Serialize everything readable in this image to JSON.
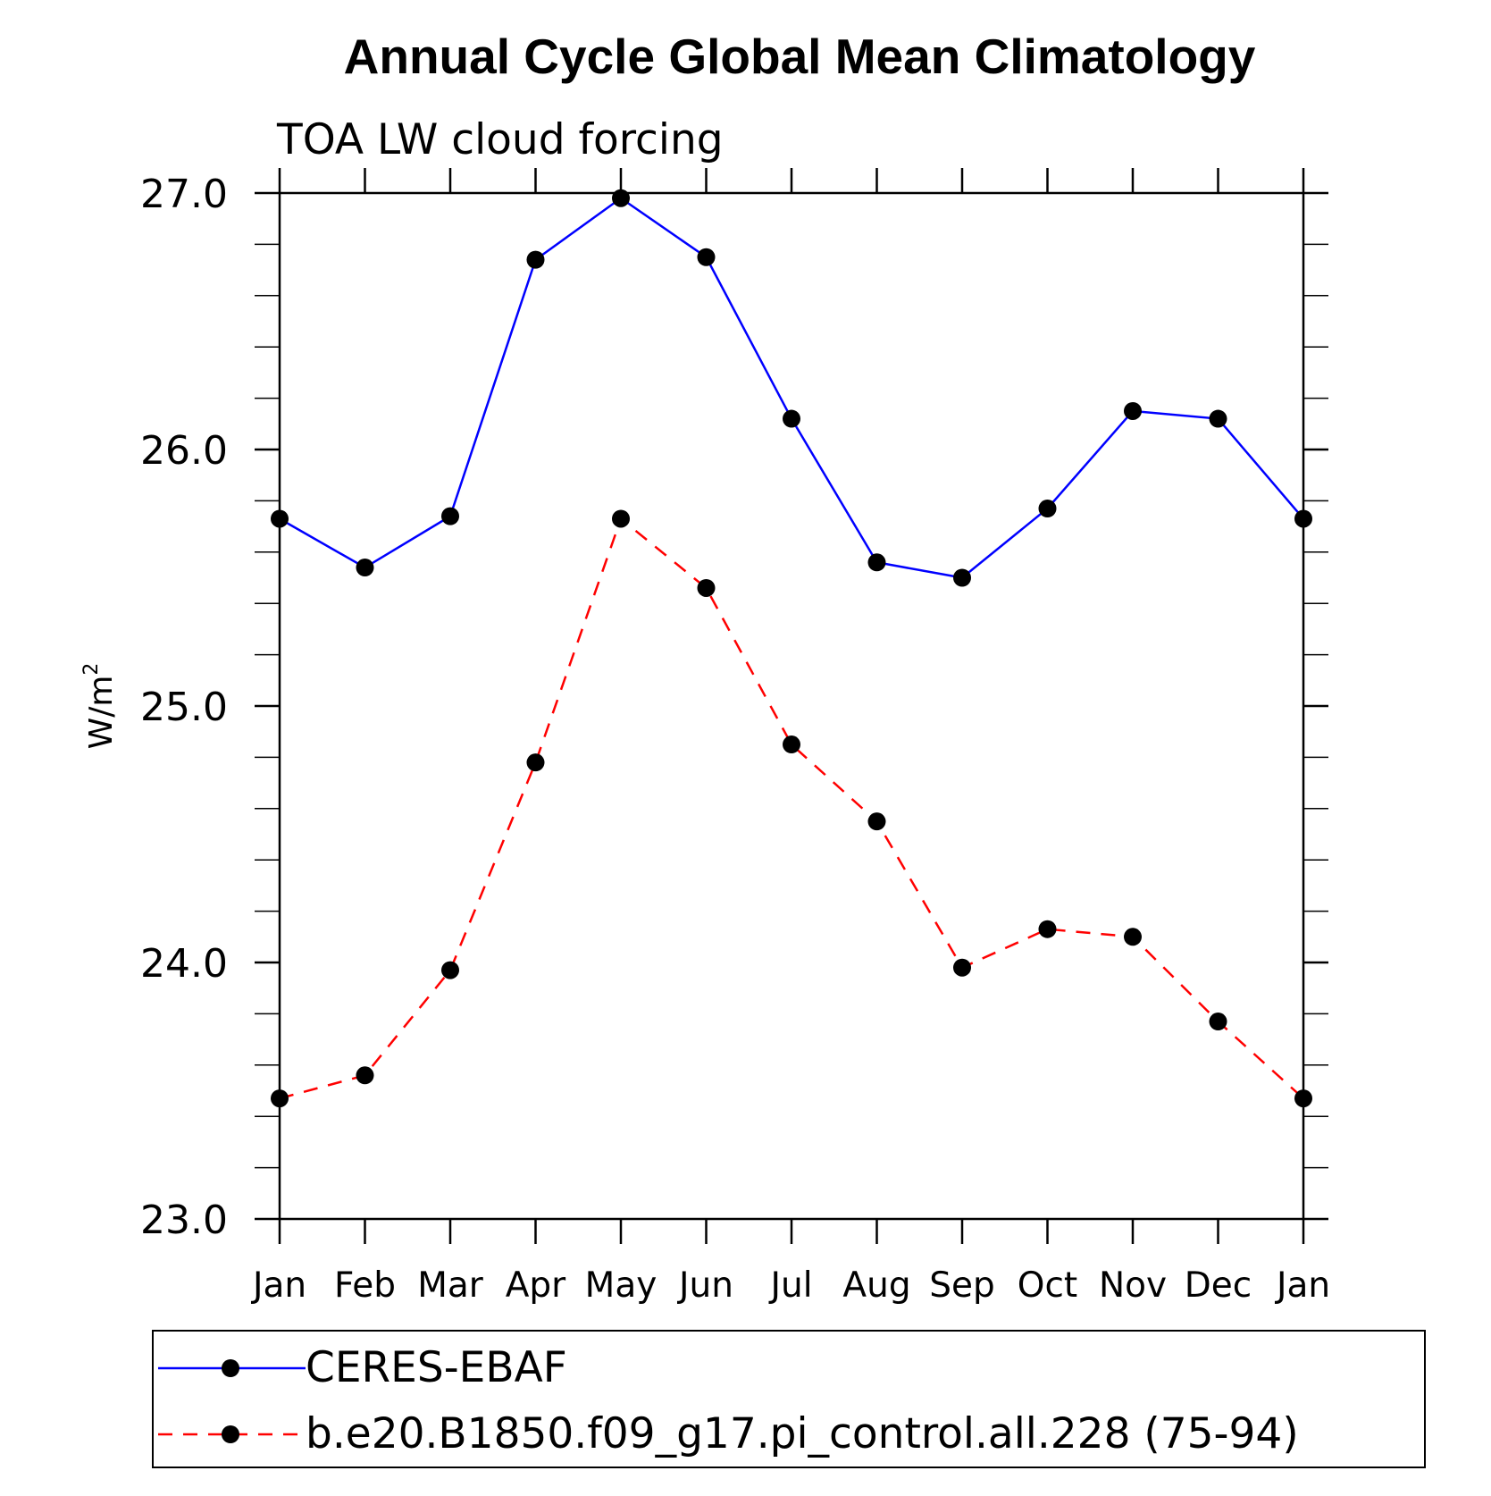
{
  "chart_data": {
    "type": "line",
    "title": "Annual Cycle Global Mean Climatology",
    "subtitle": "TOA LW cloud forcing",
    "ylabel": "W/m",
    "ylabel_superscript": "2",
    "xlabel": "",
    "categories": [
      "Jan",
      "Feb",
      "Mar",
      "Apr",
      "May",
      "Jun",
      "Jul",
      "Aug",
      "Sep",
      "Oct",
      "Nov",
      "Dec",
      "Jan"
    ],
    "ylim": [
      23.0,
      27.0
    ],
    "yticks": [
      "23.0",
      "24.0",
      "25.0",
      "26.0",
      "27.0"
    ],
    "y_minor_step": 0.2,
    "grid": false,
    "legend_position": "bottom",
    "series": [
      {
        "name": "CERES-EBAF",
        "color": "#0000ff",
        "line_style": "solid",
        "marker": "filled-circle",
        "values": [
          25.73,
          25.54,
          25.74,
          26.74,
          26.98,
          26.75,
          26.12,
          25.56,
          25.5,
          25.77,
          26.15,
          26.12,
          25.73
        ]
      },
      {
        "name": "b.e20.B1850.f09_g17.pi_control.all.228 (75-94)",
        "color": "#ff0000",
        "line_style": "dashed",
        "marker": "filled-circle",
        "values": [
          23.47,
          23.56,
          23.97,
          24.78,
          25.73,
          25.46,
          24.85,
          24.55,
          23.98,
          24.13,
          24.1,
          23.77,
          23.47
        ]
      }
    ]
  }
}
